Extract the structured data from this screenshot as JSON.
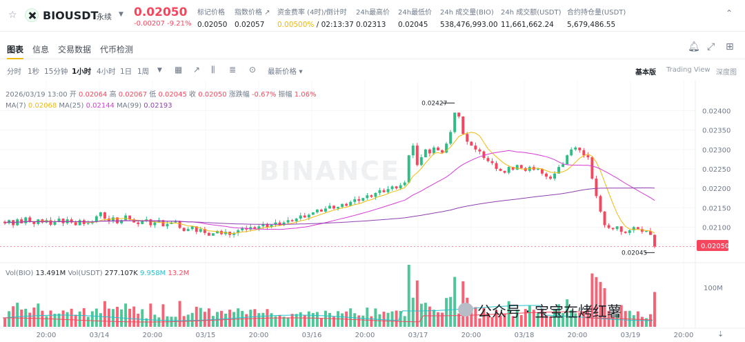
{
  "header": {
    "symbol": "BIOUSDT",
    "contract_type": "永续",
    "last_price": "0.02050",
    "change": "-0.00207 -9.21%",
    "stats": [
      {
        "label": "标记价格",
        "value": "0.02050"
      },
      {
        "label": "指数价格 ↗",
        "value": "0.02057"
      },
      {
        "label": "资金费率 (4时)/倒计时",
        "value_accent": "0.00500%",
        "value": " / 02:13:37"
      },
      {
        "label": "24h最高价",
        "value": "0.02313"
      },
      {
        "label": "24h最低价",
        "value": "0.02045"
      },
      {
        "label": "24h 成交量(BIO)",
        "value": "538,476,993.00"
      },
      {
        "label": "24h 成交额(USDT)",
        "value": "11,661,662.24"
      },
      {
        "label": "合约持仓量(USDT)",
        "value": "5,679,486.55"
      }
    ]
  },
  "tabs": [
    "图表",
    "信息",
    "交易数据",
    "代币检测"
  ],
  "toolbar": {
    "timeframes": [
      "分时",
      "1秒",
      "15分钟",
      "1小时",
      "4小时",
      "1日",
      "1周"
    ],
    "active_timeframe": "1小时",
    "price_type": "最新价格 ▾",
    "views": [
      "基本版",
      "Trading View",
      "深度图"
    ]
  },
  "ohlc": {
    "date": "2026/03/19 13:00",
    "open_label": "开",
    "open": "0.02064",
    "high_label": "高",
    "high": "0.02067",
    "low_label": "低",
    "low": "0.02045",
    "close_label": "收",
    "close": "0.02050",
    "change_label": "涨跌幅",
    "change": "-0.67%",
    "amp_label": "振幅",
    "amp": "1.06%"
  },
  "ma": {
    "ma7_label": "MA(7)",
    "ma7": "0.02068",
    "ma25_label": "MA(25)",
    "ma25": "0.02144",
    "ma99_label": "MA(99)",
    "ma99": "0.02193"
  },
  "vol": {
    "vol_bio_label": "Vol(BIO)",
    "vol_bio": "13.491M",
    "vol_usdt_label": "Vol(USDT)",
    "vol_usdt": "277.107K",
    "v1": "9.958M",
    "v2": "13.2M"
  },
  "watermark": "BINANCE",
  "wechat_text": "公众号 · 宝宝在烤红薯",
  "colors": {
    "up": "#2ebd85",
    "down": "#f6465d",
    "ma7": "#f0b90b",
    "ma25": "#d63ad6",
    "ma99": "#8f3fb0"
  },
  "chart_data": {
    "type": "candlestick",
    "y_ticks": [
      "0.02400",
      "0.02350",
      "0.02300",
      "0.02250",
      "0.02200",
      "0.02150",
      "0.02100"
    ],
    "ylim": [
      0.02035,
      0.0244
    ],
    "x_ticks": [
      "20:00",
      "03/14",
      "20:00",
      "03/15",
      "20:00",
      "03/16",
      "20:00",
      "03/17",
      "20:00",
      "03/18",
      "20:00",
      "03/19",
      "20:00"
    ],
    "high_marker": "0.02427",
    "low_marker": "0.02045",
    "current_price": "0.02050",
    "vol_tick": "100M",
    "closes": [
      0.0211,
      0.02118,
      0.02105,
      0.0212,
      0.0211,
      0.02125,
      0.02115,
      0.02108,
      0.0212,
      0.02112,
      0.02118,
      0.02106,
      0.02115,
      0.02122,
      0.0211,
      0.0212,
      0.02112,
      0.02105,
      0.02118,
      0.02108,
      0.0211,
      0.02114,
      0.02128,
      0.02138,
      0.02122,
      0.02115,
      0.02125,
      0.0211,
      0.02118,
      0.0213,
      0.0212,
      0.02112,
      0.02108,
      0.02115,
      0.0212,
      0.02105,
      0.02112,
      0.02118,
      0.02102,
      0.02108,
      0.02112,
      0.02115,
      0.02098,
      0.0209,
      0.02095,
      0.02102,
      0.02088,
      0.02095,
      0.02085,
      0.02078,
      0.02084,
      0.0209,
      0.02082,
      0.02088,
      0.0208,
      0.02085,
      0.02092,
      0.02098,
      0.02094,
      0.021,
      0.02095,
      0.02102,
      0.02108,
      0.021,
      0.02106,
      0.02112,
      0.02105,
      0.02112,
      0.02118,
      0.02115,
      0.02122,
      0.0213,
      0.02125,
      0.02132,
      0.02138,
      0.02145,
      0.0214,
      0.02148,
      0.02155,
      0.02148,
      0.02152,
      0.0216,
      0.02155,
      0.02165,
      0.02172,
      0.02168,
      0.02175,
      0.02182,
      0.02178,
      0.02188,
      0.02195,
      0.0219,
      0.02198,
      0.02205,
      0.022,
      0.02208,
      0.02215,
      0.02285,
      0.0231,
      0.0226,
      0.0228,
      0.023,
      0.0229,
      0.02305,
      0.02298,
      0.02292,
      0.02315,
      0.02345,
      0.02395,
      0.02385,
      0.0234,
      0.0232,
      0.0231,
      0.023,
      0.02295,
      0.02278,
      0.0227,
      0.02265,
      0.0225,
      0.02245,
      0.0224,
      0.02255,
      0.02248,
      0.0226,
      0.02252,
      0.02245,
      0.02255,
      0.02248,
      0.0225,
      0.02238,
      0.0223,
      0.02225,
      0.02238,
      0.02255,
      0.02262,
      0.02285,
      0.023,
      0.02305,
      0.02298,
      0.02285,
      0.0228,
      0.02225,
      0.0218,
      0.0214,
      0.02105,
      0.02098,
      0.02095,
      0.02102,
      0.02088,
      0.02085,
      0.02092,
      0.021,
      0.02095,
      0.02088,
      0.0209,
      0.0208,
      0.0205
    ]
  }
}
